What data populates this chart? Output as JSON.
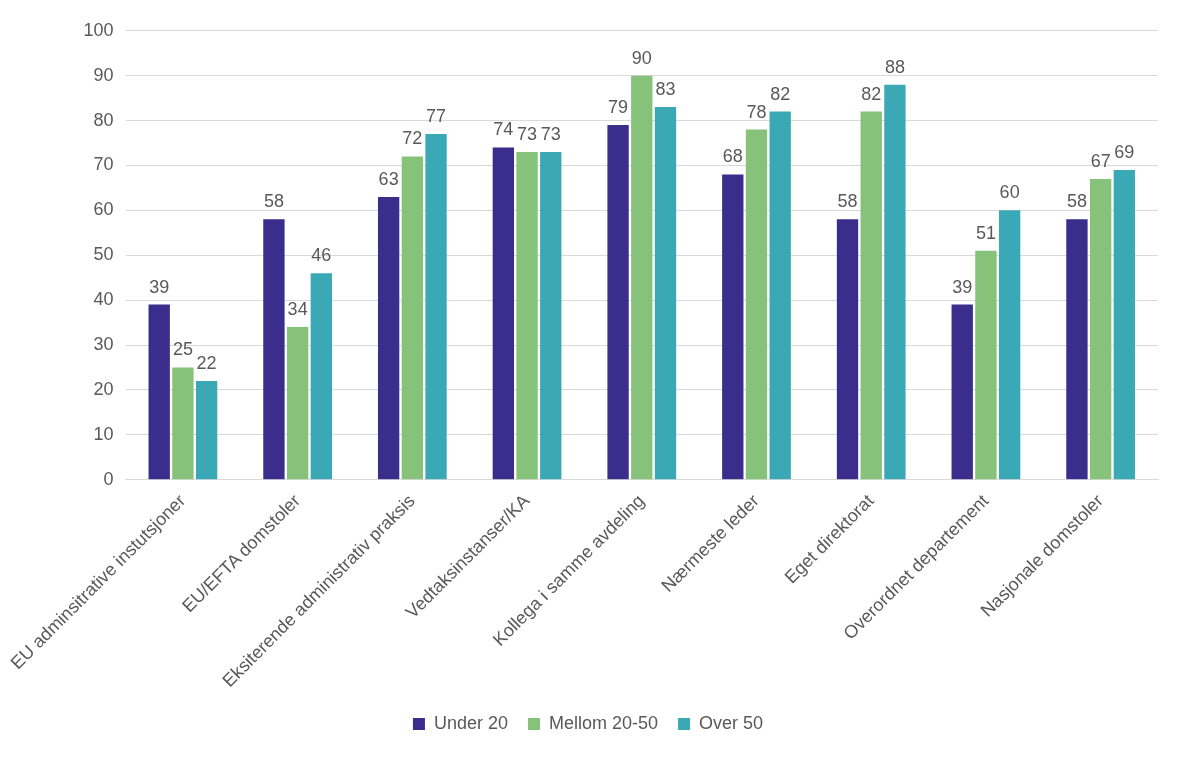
{
  "chart_data": {
    "type": "bar",
    "categories": [
      "EU adminsitrative instutsjoner",
      "EU/EFTA domstoler",
      "Eksiterende administrativ praksis",
      "Vedtaksinstanser/KA",
      "Kollega i samme avdeling",
      "Nærmeste leder",
      "Eget direktorat",
      "Overordnet departement",
      "Nasjonale domstoler"
    ],
    "series": [
      {
        "name": "Under 20",
        "color": "#3b2d8c",
        "values": [
          39,
          58,
          63,
          74,
          79,
          68,
          58,
          39,
          58
        ]
      },
      {
        "name": "Mellom 20-50",
        "color": "#86c27a",
        "values": [
          25,
          34,
          72,
          73,
          90,
          78,
          82,
          51,
          67
        ]
      },
      {
        "name": "Over 50",
        "color": "#3ba9b5",
        "values": [
          22,
          46,
          77,
          73,
          83,
          82,
          88,
          60,
          69
        ]
      }
    ],
    "ylim": [
      0,
      100
    ],
    "yticks": [
      0,
      10,
      20,
      30,
      40,
      50,
      60,
      70,
      80,
      90,
      100
    ],
    "grid": "y",
    "legend": "bottom",
    "data_labels": true
  }
}
